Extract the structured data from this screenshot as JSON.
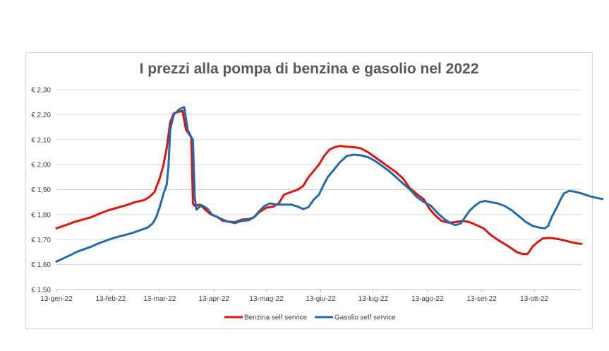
{
  "chart_data": {
    "type": "line",
    "title": "I prezzi alla pompa di benzina e gasolio nel 2022",
    "y_ticks": [
      "€ 1,50",
      "€ 1,60",
      "€ 1,70",
      "€ 1,80",
      "€ 1,90",
      "€ 2,00",
      "€ 2,10",
      "€ 2,20",
      "€ 2,30"
    ],
    "ylim": [
      1.5,
      2.3
    ],
    "x_ticks": [
      "13-gen-22",
      "13-feb-22",
      "13-mar-22",
      "13-apr-22",
      "13-mag-22",
      "13-giu-22",
      "13-lug-22",
      "13-ago-22",
      "13-set-22",
      "13-ott-22"
    ],
    "x_tick_days": [
      0,
      31,
      59,
      90,
      120,
      151,
      181,
      212,
      243,
      273
    ],
    "xlim": [
      0,
      300
    ],
    "grid": true,
    "legend_position": "bottom",
    "series": [
      {
        "name": "Benzina self service",
        "color": "#e0140e",
        "points": [
          [
            0,
            1.745
          ],
          [
            5,
            1.757
          ],
          [
            10,
            1.77
          ],
          [
            15,
            1.78
          ],
          [
            20,
            1.79
          ],
          [
            25,
            1.805
          ],
          [
            30,
            1.818
          ],
          [
            35,
            1.828
          ],
          [
            40,
            1.838
          ],
          [
            45,
            1.85
          ],
          [
            50,
            1.858
          ],
          [
            53,
            1.87
          ],
          [
            56,
            1.89
          ],
          [
            59,
            1.945
          ],
          [
            61,
            1.995
          ],
          [
            63,
            2.065
          ],
          [
            65,
            2.17
          ],
          [
            67,
            2.205
          ],
          [
            70,
            2.212
          ],
          [
            72,
            2.215
          ],
          [
            74,
            2.14
          ],
          [
            76,
            2.12
          ],
          [
            77,
            2.11
          ],
          [
            78,
            1.845
          ],
          [
            79,
            1.835
          ],
          [
            82,
            1.84
          ],
          [
            85,
            1.82
          ],
          [
            88,
            1.802
          ],
          [
            92,
            1.79
          ],
          [
            95,
            1.775
          ],
          [
            98,
            1.772
          ],
          [
            102,
            1.77
          ],
          [
            106,
            1.78
          ],
          [
            110,
            1.782
          ],
          [
            113,
            1.79
          ],
          [
            116,
            1.81
          ],
          [
            120,
            1.828
          ],
          [
            124,
            1.832
          ],
          [
            127,
            1.845
          ],
          [
            130,
            1.88
          ],
          [
            134,
            1.89
          ],
          [
            138,
            1.9
          ],
          [
            141,
            1.915
          ],
          [
            144,
            1.95
          ],
          [
            147,
            1.975
          ],
          [
            150,
            2.0
          ],
          [
            153,
            2.035
          ],
          [
            156,
            2.06
          ],
          [
            159,
            2.07
          ],
          [
            162,
            2.075
          ],
          [
            166,
            2.072
          ],
          [
            170,
            2.07
          ],
          [
            174,
            2.065
          ],
          [
            178,
            2.05
          ],
          [
            182,
            2.03
          ],
          [
            186,
            2.01
          ],
          [
            190,
            1.99
          ],
          [
            194,
            1.97
          ],
          [
            198,
            1.945
          ],
          [
            202,
            1.905
          ],
          [
            206,
            1.882
          ],
          [
            210,
            1.86
          ],
          [
            213,
            1.825
          ],
          [
            216,
            1.8
          ],
          [
            220,
            1.775
          ],
          [
            224,
            1.768
          ],
          [
            228,
            1.77
          ],
          [
            232,
            1.775
          ],
          [
            236,
            1.77
          ],
          [
            240,
            1.758
          ],
          [
            244,
            1.745
          ],
          [
            248,
            1.72
          ],
          [
            252,
            1.7
          ],
          [
            256,
            1.683
          ],
          [
            260,
            1.665
          ],
          [
            263,
            1.65
          ],
          [
            266,
            1.643
          ],
          [
            269,
            1.642
          ],
          [
            270,
            1.65
          ],
          [
            272,
            1.672
          ],
          [
            275,
            1.69
          ],
          [
            278,
            1.705
          ],
          [
            282,
            1.707
          ],
          [
            286,
            1.703
          ],
          [
            290,
            1.697
          ],
          [
            294,
            1.69
          ],
          [
            298,
            1.684
          ],
          [
            300,
            1.683
          ]
        ]
      },
      {
        "name": "Gasolio self service",
        "color": "#1f6bb0",
        "points": [
          [
            0,
            1.612
          ],
          [
            4,
            1.625
          ],
          [
            8,
            1.638
          ],
          [
            12,
            1.652
          ],
          [
            16,
            1.662
          ],
          [
            20,
            1.672
          ],
          [
            24,
            1.685
          ],
          [
            28,
            1.695
          ],
          [
            32,
            1.705
          ],
          [
            36,
            1.713
          ],
          [
            40,
            1.72
          ],
          [
            44,
            1.728
          ],
          [
            48,
            1.738
          ],
          [
            52,
            1.748
          ],
          [
            55,
            1.765
          ],
          [
            57,
            1.79
          ],
          [
            59,
            1.83
          ],
          [
            61,
            1.88
          ],
          [
            63,
            1.92
          ],
          [
            64,
            1.99
          ],
          [
            65,
            2.14
          ],
          [
            67,
            2.2
          ],
          [
            70,
            2.22
          ],
          [
            72,
            2.228
          ],
          [
            73,
            2.23
          ],
          [
            75,
            2.14
          ],
          [
            77,
            2.11
          ],
          [
            78,
            2.1
          ],
          [
            79,
            1.87
          ],
          [
            80,
            1.82
          ],
          [
            83,
            1.838
          ],
          [
            86,
            1.825
          ],
          [
            89,
            1.8
          ],
          [
            92,
            1.79
          ],
          [
            95,
            1.78
          ],
          [
            98,
            1.772
          ],
          [
            102,
            1.766
          ],
          [
            106,
            1.775
          ],
          [
            110,
            1.778
          ],
          [
            113,
            1.79
          ],
          [
            116,
            1.815
          ],
          [
            119,
            1.835
          ],
          [
            122,
            1.845
          ],
          [
            126,
            1.84
          ],
          [
            130,
            1.84
          ],
          [
            134,
            1.84
          ],
          [
            138,
            1.832
          ],
          [
            141,
            1.822
          ],
          [
            144,
            1.83
          ],
          [
            147,
            1.86
          ],
          [
            150,
            1.88
          ],
          [
            152,
            1.91
          ],
          [
            155,
            1.95
          ],
          [
            158,
            1.975
          ],
          [
            162,
            2.01
          ],
          [
            166,
            2.035
          ],
          [
            170,
            2.04
          ],
          [
            174,
            2.037
          ],
          [
            178,
            2.03
          ],
          [
            182,
            2.015
          ],
          [
            186,
            1.995
          ],
          [
            190,
            1.975
          ],
          [
            194,
            1.95
          ],
          [
            198,
            1.925
          ],
          [
            202,
            1.9
          ],
          [
            206,
            1.87
          ],
          [
            210,
            1.85
          ],
          [
            214,
            1.835
          ],
          [
            218,
            1.805
          ],
          [
            222,
            1.78
          ],
          [
            226,
            1.763
          ],
          [
            228,
            1.758
          ],
          [
            231,
            1.765
          ],
          [
            233,
            1.785
          ],
          [
            236,
            1.815
          ],
          [
            239,
            1.835
          ],
          [
            242,
            1.85
          ],
          [
            245,
            1.855
          ],
          [
            248,
            1.85
          ],
          [
            252,
            1.845
          ],
          [
            256,
            1.835
          ],
          [
            260,
            1.818
          ],
          [
            264,
            1.795
          ],
          [
            268,
            1.772
          ],
          [
            272,
            1.755
          ],
          [
            276,
            1.748
          ],
          [
            279,
            1.745
          ],
          [
            281,
            1.755
          ],
          [
            283,
            1.79
          ],
          [
            286,
            1.83
          ],
          [
            288,
            1.86
          ],
          [
            290,
            1.885
          ],
          [
            293,
            1.895
          ],
          [
            296,
            1.892
          ],
          [
            300,
            1.885
          ],
          [
            304,
            1.875
          ],
          [
            308,
            1.868
          ],
          [
            312,
            1.862
          ]
        ]
      }
    ]
  }
}
